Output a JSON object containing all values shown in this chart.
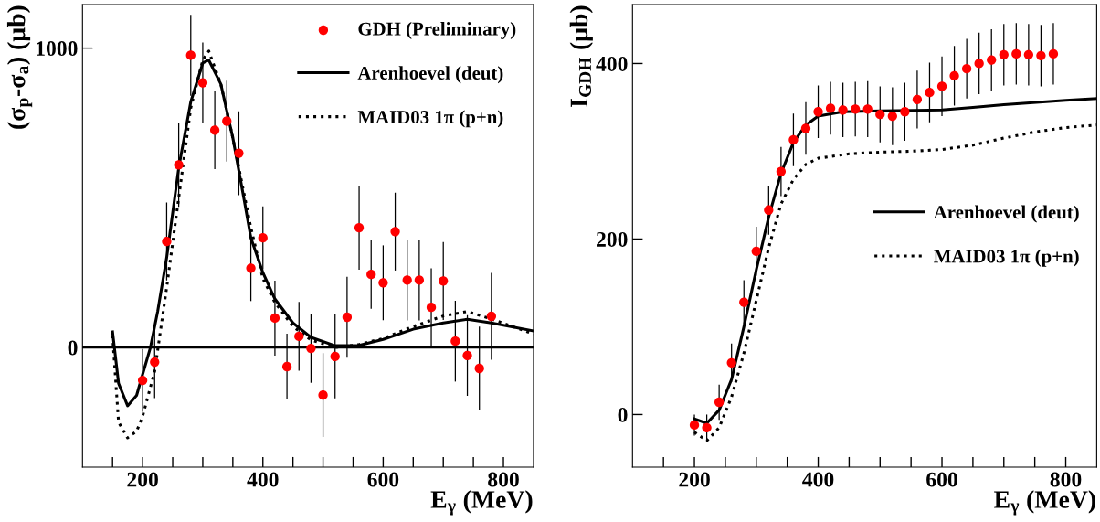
{
  "chart_data": [
    {
      "type": "scatter",
      "ylabel": "(σ$_{p}$-σ$_{a}$) (μb)",
      "xlabel": "E$_{γ}$ (MeV)",
      "xlim": [
        100,
        850
      ],
      "ylim": [
        -400,
        1145
      ],
      "xticks": [
        {
          "value": 150,
          "label": null
        },
        200,
        {
          "value": 250,
          "label": null
        },
        {
          "value": 300,
          "label": null
        },
        {
          "value": 350,
          "label": null
        },
        400,
        {
          "value": 450,
          "label": null
        },
        {
          "value": 500,
          "label": null
        },
        {
          "value": 550,
          "label": null
        },
        600,
        {
          "value": 650,
          "label": null
        },
        {
          "value": 700,
          "label": null
        },
        {
          "value": 750,
          "label": null
        },
        800
      ],
      "yticks": [
        0,
        1000
      ],
      "grid": false,
      "legend": "top right",
      "ref_lines": [
        {
          "axis": "y",
          "value": 0,
          "color": "#000000",
          "line_style": "solid"
        }
      ],
      "series": [
        {
          "name": "GDH (Preliminary)",
          "marker": "circle",
          "color": "#ff0000",
          "x": [
            200,
            220,
            240,
            260,
            280,
            300,
            320,
            340,
            360,
            380,
            400,
            420,
            440,
            460,
            480,
            500,
            520,
            540,
            560,
            580,
            600,
            620,
            640,
            660,
            680,
            700,
            720,
            740,
            760,
            780
          ],
          "values": [
            -110,
            -49,
            354,
            610,
            976,
            884,
            726,
            756,
            649,
            265,
            366,
            98,
            -64,
            37,
            -3,
            -159,
            -30,
            101,
            400,
            244,
            216,
            387,
            225,
            225,
            134,
            222,
            21,
            -27,
            -70,
            104
          ],
          "errors": [
            105,
            120,
            130,
            140,
            135,
            135,
            130,
            135,
            140,
            110,
            105,
            125,
            110,
            115,
            115,
            140,
            140,
            135,
            140,
            115,
            125,
            130,
            135,
            135,
            130,
            130,
            135,
            135,
            140,
            145
          ]
        },
        {
          "name": "Arenhoevel (deut)",
          "type": "line",
          "line_style": "solid",
          "marker": "none",
          "color": "#000000",
          "x": [
            150,
            160,
            175,
            190,
            200,
            213,
            225,
            240,
            260,
            280,
            300,
            310,
            330,
            350,
            370,
            380,
            400,
            420,
            450,
            480,
            520,
            560,
            600,
            650,
            700,
            740,
            780,
            850
          ],
          "values": [
            52,
            -120,
            -195,
            -160,
            -90,
            0,
            120,
            300,
            600,
            820,
            950,
            960,
            880,
            700,
            480,
            366,
            250,
            162,
            82,
            34,
            6,
            7,
            27,
            61,
            82,
            94,
            82,
            55
          ]
        },
        {
          "name": "MAID03 1π (p+n)",
          "type": "line",
          "line_style": "dotted",
          "marker": "none",
          "color": "#000000",
          "x": [
            150,
            160,
            175,
            190,
            200,
            220,
            240,
            260,
            280,
            300,
            310,
            330,
            350,
            380,
            400,
            420,
            450,
            480,
            520,
            560,
            600,
            650,
            700,
            740,
            780,
            850
          ],
          "values": [
            40,
            -250,
            -302,
            -280,
            -230,
            -80,
            200,
            500,
            800,
            960,
            990,
            880,
            700,
            400,
            230,
            150,
            70,
            25,
            0,
            10,
            30,
            70,
            105,
            120,
            95,
            45
          ]
        }
      ]
    },
    {
      "type": "scatter",
      "ylabel": "I$_{GDH}$ (μb)",
      "xlabel": "E$_{γ}$ (MeV)",
      "xlim": [
        100,
        850
      ],
      "ylim": [
        -60,
        467
      ],
      "xticks": [
        {
          "value": 150,
          "label": null
        },
        200,
        {
          "value": 250,
          "label": null
        },
        {
          "value": 300,
          "label": null
        },
        {
          "value": 350,
          "label": null
        },
        400,
        {
          "value": 450,
          "label": null
        },
        {
          "value": 500,
          "label": null
        },
        {
          "value": 550,
          "label": null
        },
        600,
        {
          "value": 650,
          "label": null
        },
        {
          "value": 700,
          "label": null
        },
        {
          "value": 750,
          "label": null
        },
        800
      ],
      "yticks": [
        0,
        200,
        400
      ],
      "grid": false,
      "legend": "right",
      "series": [
        {
          "marker": "circle",
          "color": "#ff0000",
          "x": [
            200,
            220,
            240,
            260,
            280,
            300,
            320,
            340,
            360,
            380,
            400,
            420,
            440,
            460,
            480,
            500,
            520,
            540,
            560,
            580,
            600,
            620,
            640,
            660,
            680,
            700,
            720,
            740,
            760,
            780
          ],
          "values": [
            -12,
            -15,
            14,
            59,
            128,
            186,
            233,
            277,
            313,
            326,
            345,
            349,
            347,
            348,
            348,
            342,
            340,
            345,
            359,
            367,
            374,
            386,
            394,
            400,
            404,
            410,
            411,
            410,
            409,
            411
          ],
          "errors": [
            12,
            15,
            20,
            22,
            25,
            28,
            28,
            28,
            30,
            30,
            30,
            30,
            31,
            31,
            32,
            32,
            33,
            33,
            33,
            34,
            34,
            34,
            34,
            35,
            35,
            35,
            35,
            35,
            35,
            35
          ]
        },
        {
          "name": "Arenhoevel (deut)",
          "type": "line",
          "line_style": "solid",
          "marker": "none",
          "color": "#000000",
          "x": [
            200,
            220,
            240,
            260,
            280,
            300,
            320,
            340,
            360,
            380,
            400,
            440,
            500,
            600,
            650,
            700,
            800,
            850
          ],
          "values": [
            -5,
            -10,
            5,
            40,
            100,
            165,
            225,
            275,
            310,
            330,
            340,
            345,
            346,
            347,
            350,
            353,
            358,
            360
          ]
        },
        {
          "name": "MAID03 1π (p+n)",
          "type": "line",
          "line_style": "dotted",
          "marker": "none",
          "color": "#000000",
          "x": [
            200,
            220,
            240,
            260,
            280,
            300,
            320,
            340,
            360,
            380,
            400,
            450,
            500,
            550,
            600,
            650,
            700,
            750,
            800,
            850
          ],
          "values": [
            -20,
            -30,
            -15,
            20,
            70,
            130,
            190,
            240,
            268,
            285,
            292,
            297,
            299,
            300,
            302,
            307,
            315,
            322,
            327,
            330
          ]
        }
      ]
    }
  ]
}
